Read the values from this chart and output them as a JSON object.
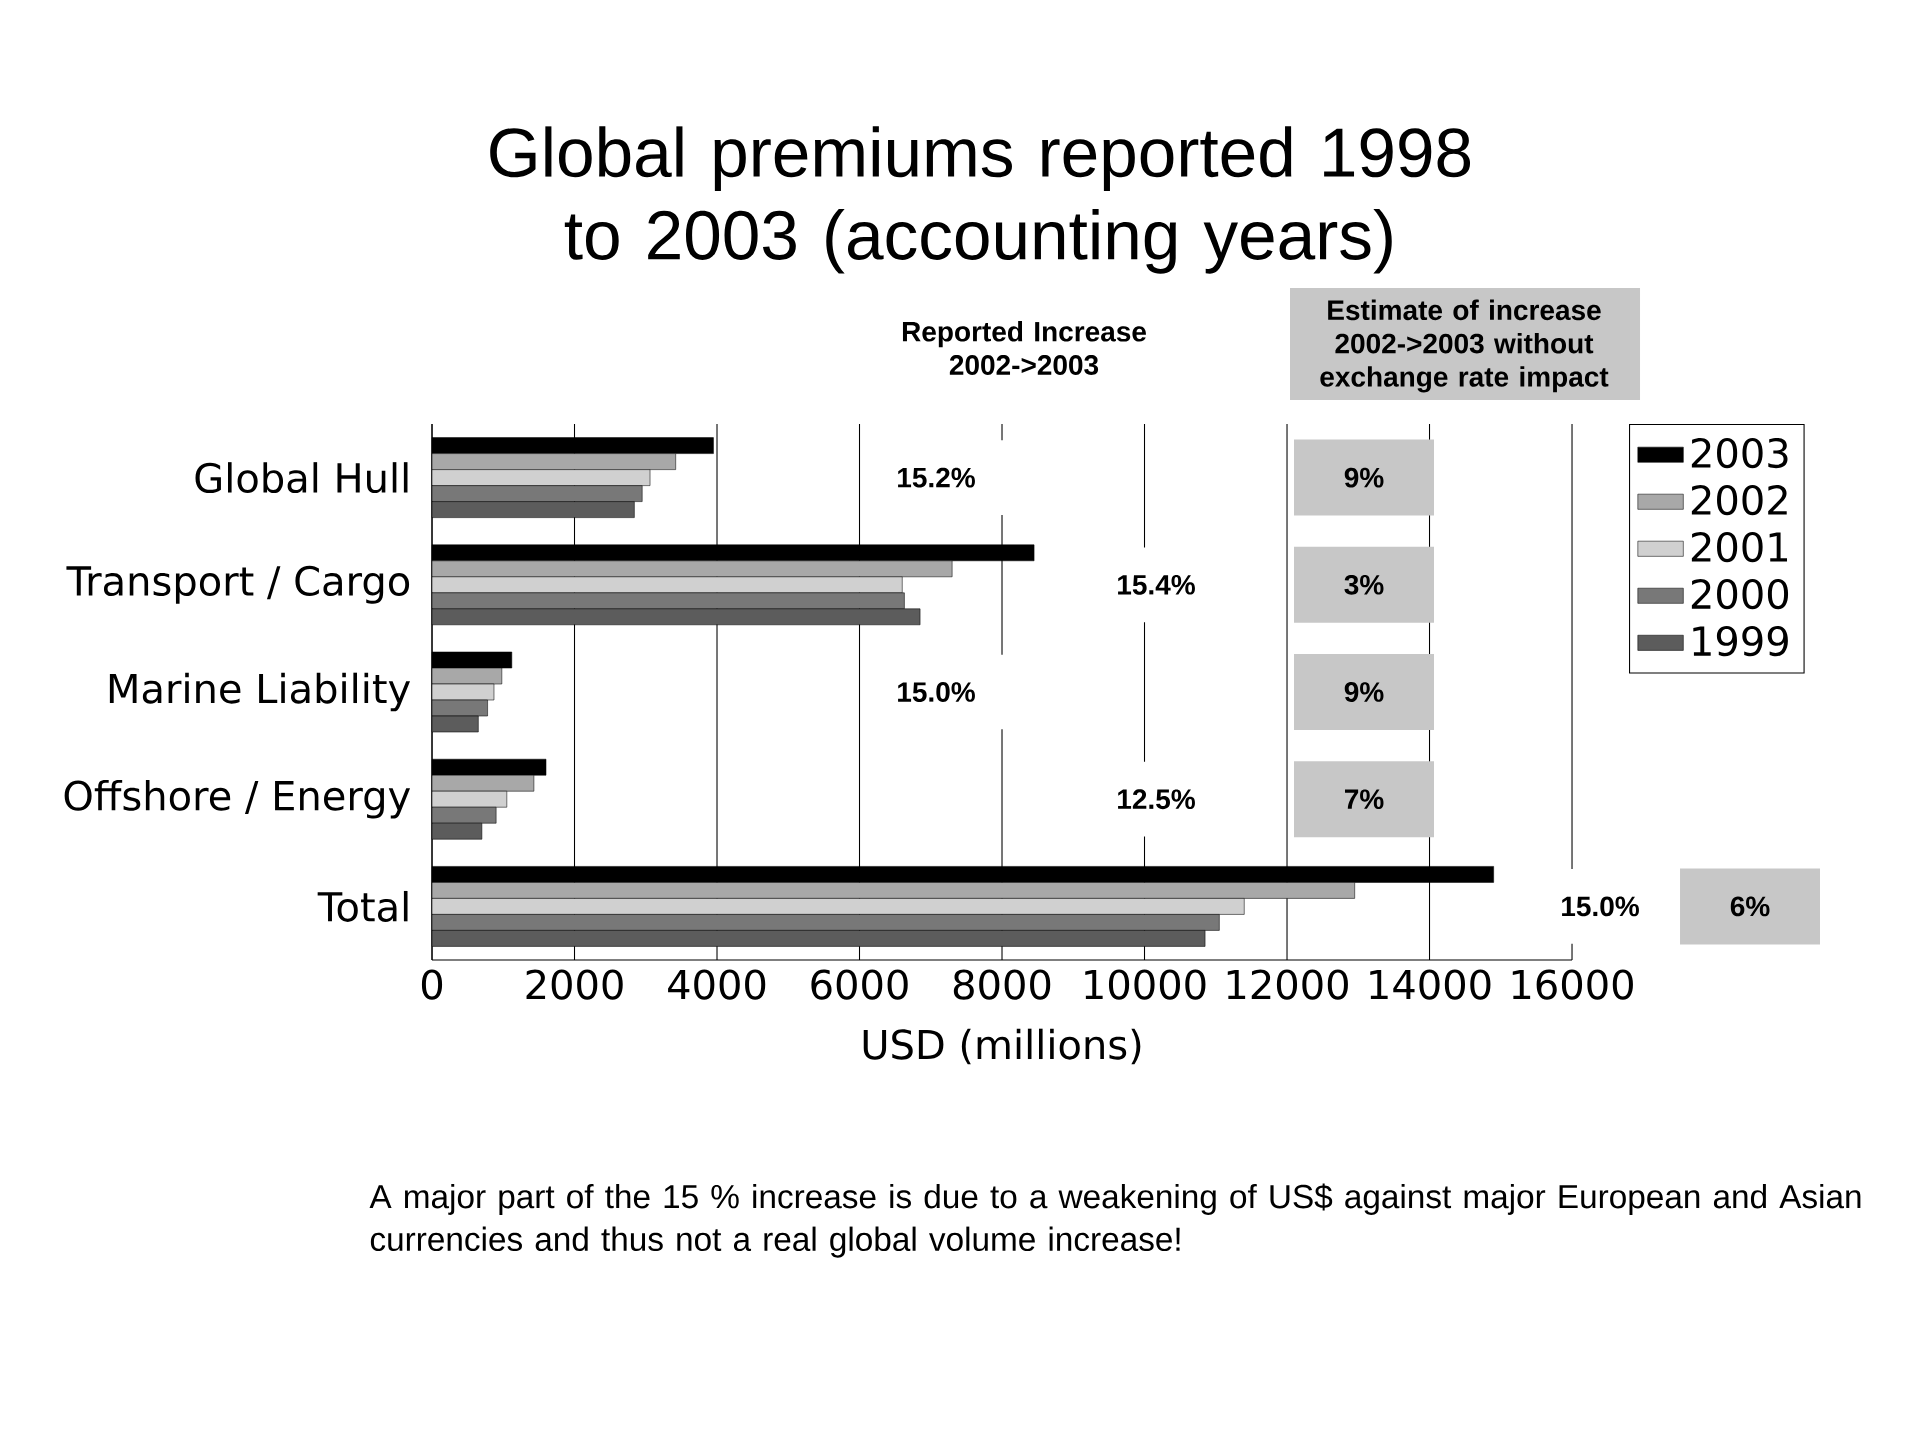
{
  "chart_data": {
    "type": "bar",
    "orientation": "horizontal",
    "title": "Global premiums reported 1998 to 2003 (accounting years)",
    "xlabel": "USD (millions)",
    "categories": [
      "Global Hull",
      "Transport  / Cargo",
      "Marine Liability",
      "Offshore / Energy",
      "Total"
    ],
    "series": [
      {
        "name": "2003",
        "color": "#000000",
        "values": [
          3950,
          8450,
          1120,
          1600,
          14900
        ]
      },
      {
        "name": "2002",
        "color": "#a8a8a8",
        "values": [
          3420,
          7300,
          980,
          1430,
          12950
        ]
      },
      {
        "name": "2001",
        "color": "#d0d0d0",
        "values": [
          3060,
          6600,
          870,
          1050,
          11400
        ]
      },
      {
        "name": "2000",
        "color": "#787878",
        "values": [
          2950,
          6630,
          780,
          900,
          11050
        ]
      },
      {
        "name": "1999",
        "color": "#5c5c5c",
        "values": [
          2840,
          6850,
          650,
          700,
          10850
        ]
      }
    ],
    "xlim": [
      0,
      16000
    ],
    "xticks": [
      0,
      2000,
      4000,
      6000,
      8000,
      10000,
      12000,
      14000,
      16000
    ],
    "grid": "x",
    "legend": "right",
    "annotations": [
      "Reported Increase 2002->2003",
      "Estimate of increase 2002->2003 without exchange rate impact",
      "15.2%",
      "15.4%",
      "15.0%",
      "12.5%",
      "15.0%",
      "9%",
      "3%",
      "9%",
      "7%",
      "6%",
      "A major part of the 15 % increase is due to a weakening of US$ against major European and Asian currencies and thus not a real global volume increase!"
    ]
  }
}
